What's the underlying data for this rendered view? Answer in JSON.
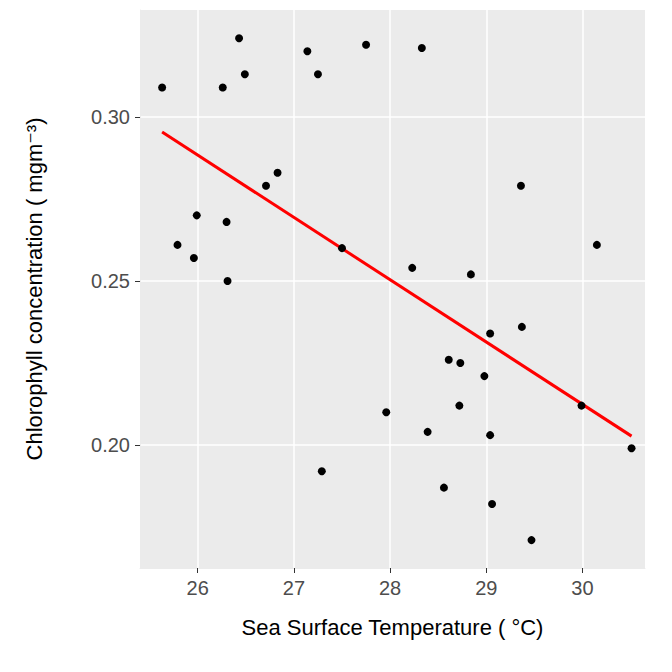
{
  "chart_data": {
    "type": "scatter",
    "x_label": "Sea Surface Temperature ( °C)",
    "y_label": "Chlorophyll concentration ( mgm⁻³)",
    "xlim": [
      25.4,
      30.65
    ],
    "xticks": [
      26,
      27,
      28,
      29,
      30
    ],
    "ylim": [
      0.1625,
      0.3326
    ],
    "yticks": [
      {
        "value": 0.2,
        "label": "0.20"
      },
      0.25,
      {
        "value": 0.3,
        "label": "0.30"
      }
    ],
    "grid": true,
    "series": [
      {
        "type": "scatter",
        "color": "#000000",
        "marker": "circle",
        "x": [
          25.63,
          25.79,
          25.96,
          25.99,
          26.26,
          26.3,
          26.31,
          26.43,
          26.49,
          26.71,
          26.83,
          27.14,
          27.25,
          27.29,
          27.5,
          27.75,
          27.96,
          28.23,
          28.33,
          28.39,
          28.56,
          28.61,
          28.73,
          28.72,
          28.84,
          28.98,
          29.04,
          29.04,
          29.06,
          29.36,
          29.37,
          29.47,
          29.99,
          30.15,
          30.51
        ],
        "values": [
          0.309,
          0.261,
          0.257,
          0.27,
          0.309,
          0.268,
          0.25,
          0.324,
          0.313,
          0.279,
          0.283,
          0.32,
          0.313,
          0.192,
          0.26,
          0.322,
          0.21,
          0.254,
          0.321,
          0.204,
          0.187,
          0.226,
          0.225,
          0.212,
          0.252,
          0.221,
          0.234,
          0.203,
          0.182,
          0.279,
          0.236,
          0.171,
          0.212,
          0.261,
          0.199
        ]
      },
      {
        "type": "line",
        "color": "#ff0000",
        "line_style": "solid",
        "x": [
          25.63,
          30.51
        ],
        "values": [
          0.2954,
          0.2027
        ]
      }
    ]
  }
}
